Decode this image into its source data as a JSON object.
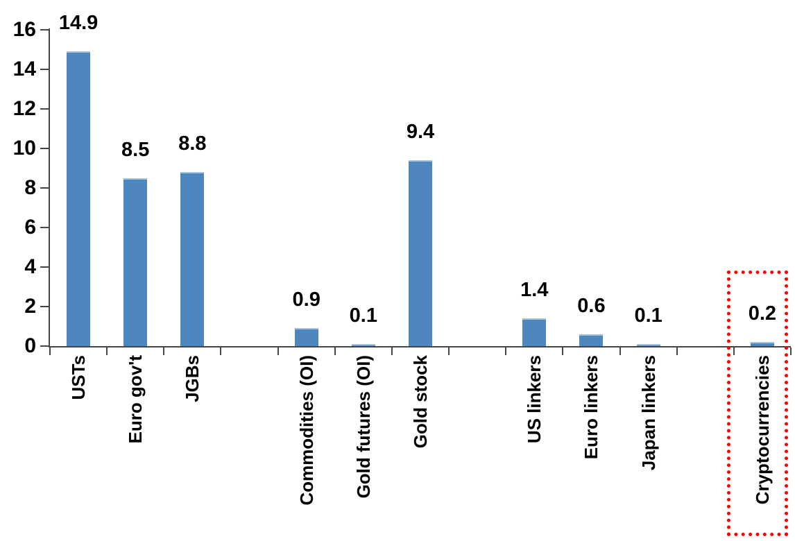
{
  "chart_data": {
    "type": "bar",
    "categories": [
      "USTs",
      "Euro gov't",
      "JGBs",
      "Commodities (OI)",
      "Gold futures (OI)",
      "Gold stock",
      "US linkers",
      "Euro linkers",
      "Japan linkers",
      "Cryptocurrencies"
    ],
    "values": [
      14.9,
      8.5,
      8.8,
      0.9,
      0.1,
      9.4,
      1.4,
      0.6,
      0.1,
      0.2
    ],
    "value_labels": [
      "14.9",
      "8.5",
      "8.8",
      "0.9",
      "0.1",
      "9.4",
      "1.4",
      "0.6",
      "0.1",
      "0.2"
    ],
    "groups": [
      [
        "USTs",
        "Euro gov't",
        "JGBs"
      ],
      [
        "Commodities (OI)",
        "Gold futures (OI)",
        "Gold stock"
      ],
      [
        "US linkers",
        "Euro linkers",
        "Japan linkers"
      ],
      [
        "Cryptocurrencies"
      ]
    ],
    "gap_after_category_index": [
      2,
      5,
      8
    ],
    "highlighted_category": "Cryptocurrencies",
    "yticks": [
      0,
      2,
      4,
      6,
      8,
      10,
      12,
      14,
      16
    ],
    "ylim": [
      0,
      16
    ],
    "grid": "off",
    "legend": "none",
    "bar_color": "#4E87BE",
    "bar_edge_color": "#A6C3DE",
    "axis_color": "#454545",
    "text_color": "#000000",
    "highlight_box_color": "#FF0000"
  }
}
